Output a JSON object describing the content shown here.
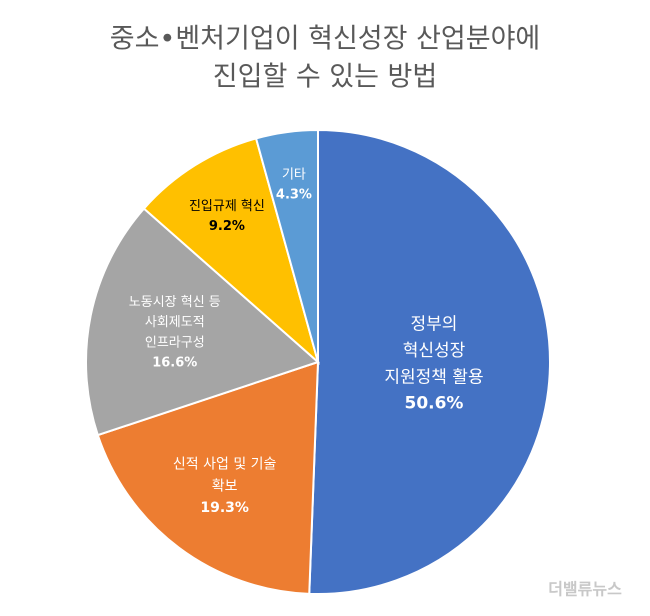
{
  "chart_data": {
    "type": "pie",
    "title": [
      "중소•벤처기업이 혁신성장 산업분야에",
      "진입할 수 있는 방법"
    ],
    "categories": [
      [
        "정부의",
        "혁신성장",
        "지원정책 활용"
      ],
      [
        "신적 사업 및 기술",
        "확보"
      ],
      [
        "노동시장 혁신 등",
        "사회제도적",
        "인프라구성"
      ],
      [
        "진입규제 혁신"
      ],
      [
        "기타"
      ]
    ],
    "values": [
      50.6,
      19.3,
      16.6,
      9.2,
      4.3
    ],
    "value_labels": [
      "50.6%",
      "19.3%",
      "16.6%",
      "9.2%",
      "4.3%"
    ],
    "colors": [
      "#4472c4",
      "#ed7d31",
      "#a5a5a5",
      "#ffc000",
      "#5b9bd5"
    ]
  },
  "watermark": "더밸류뉴스"
}
